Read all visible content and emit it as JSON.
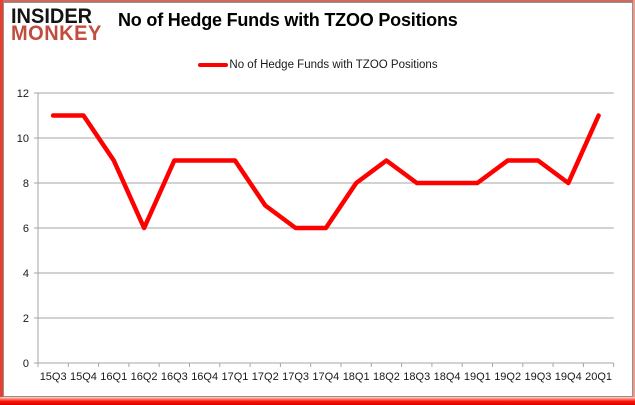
{
  "brand": {
    "line1": "INSIDER",
    "line2": "MONKEY"
  },
  "header": {
    "title": "No of Hedge Funds with TZOO Positions"
  },
  "legend": {
    "label": "No of Hedge Funds with TZOO Positions"
  },
  "colors": {
    "series_line": "#ff0000",
    "gridline": "#a6a6a6",
    "axis_text": "#1a1a1a",
    "brand_red": "#c24c3d",
    "frame_red": "#e8402f"
  },
  "chart_data": {
    "type": "line",
    "title": "No of Hedge Funds with TZOO Positions",
    "categories": [
      "15Q3",
      "15Q4",
      "16Q1",
      "16Q2",
      "16Q3",
      "16Q4",
      "17Q1",
      "17Q2",
      "17Q3",
      "17Q4",
      "18Q1",
      "18Q2",
      "18Q3",
      "18Q4",
      "19Q1",
      "19Q2",
      "19Q3",
      "19Q4",
      "20Q1"
    ],
    "series": [
      {
        "name": "No of Hedge Funds with TZOO Positions",
        "color": "#ff0000",
        "values": [
          11,
          11,
          9,
          6,
          9,
          9,
          9,
          7,
          6,
          6,
          8,
          9,
          8,
          8,
          8,
          9,
          9,
          8,
          11
        ]
      }
    ],
    "xlabel": "",
    "ylabel": "",
    "ylim": [
      0,
      12
    ],
    "ytick_step": 2,
    "ytick_labels": [
      "0",
      "2",
      "4",
      "6",
      "8",
      "10",
      "12"
    ],
    "grid": "horizontal",
    "legend_position": "top-center"
  }
}
